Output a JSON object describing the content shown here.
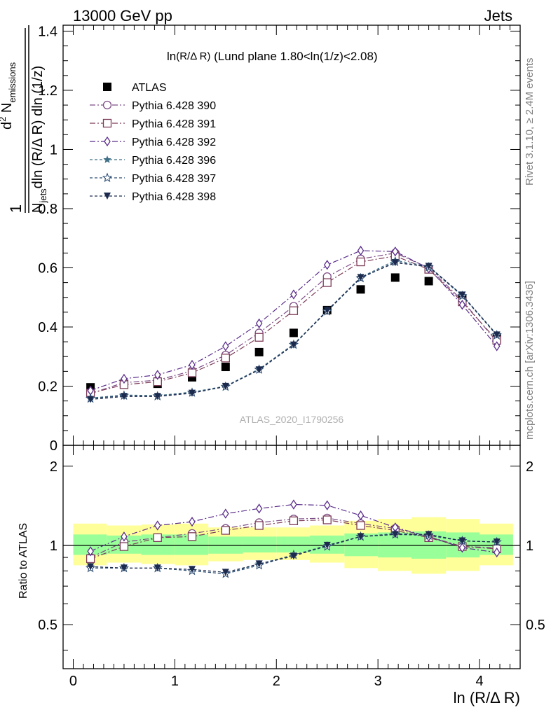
{
  "header": {
    "left": "13000 GeV pp",
    "right": "Jets"
  },
  "side_labels": {
    "rivet": "Rivet 3.1.10, ≥ 2.4M events",
    "mcplots": "mcplots.cern.ch [arXiv:1306.3436]"
  },
  "watermark": "ATLAS_2020_I1790256",
  "colors": {
    "yellow_band": "#ffff99",
    "green_band": "#99ff99",
    "data": "#000000",
    "p390": "#7e4e86",
    "p391": "#7d3c58",
    "p392": "#5b2e8a",
    "p396": "#3f6f86",
    "p397": "#2e4e74",
    "p398": "#1c2a4e"
  },
  "chart_data": [
    {
      "type": "line",
      "panel": "main",
      "title": "ln(R/Δ R) (Lund plane 1.80<ln(1/z)<2.08)",
      "xlabel": "ln (R/Δ R)",
      "ylabel": "1/N_jets d²N_emissions / dln(R/Δ R) dln(1/z)",
      "xlim": [
        -0.1,
        4.4
      ],
      "ylim": [
        0,
        1.42
      ],
      "x_ticks": [
        "0",
        "1",
        "2",
        "3",
        "4"
      ],
      "y_ticks": [
        "0",
        "0.2",
        "0.4",
        "0.6",
        "0.8",
        "1",
        "1.2",
        "1.4"
      ],
      "legend_position": "top-left",
      "x": [
        0.17,
        0.5,
        0.83,
        1.17,
        1.5,
        1.83,
        2.17,
        2.5,
        2.83,
        3.17,
        3.5,
        3.83,
        4.17
      ],
      "series": [
        {
          "name": "ATLAS",
          "marker": "square",
          "values": [
            0.196,
            0.208,
            0.208,
            0.23,
            0.265,
            0.315,
            0.38,
            0.457,
            0.527,
            0.567,
            0.555,
            0.495,
            0.365
          ]
        },
        {
          "name": "Pythia 6.428 390",
          "marker": "circle",
          "values": [
            0.175,
            0.212,
            0.22,
            0.252,
            0.305,
            0.38,
            0.47,
            0.57,
            0.63,
            0.65,
            0.6,
            0.49,
            0.35
          ]
        },
        {
          "name": "Pythia 6.428 391",
          "marker": "open-square",
          "values": [
            0.176,
            0.205,
            0.215,
            0.245,
            0.295,
            0.365,
            0.455,
            0.55,
            0.62,
            0.64,
            0.595,
            0.485,
            0.355
          ]
        },
        {
          "name": "Pythia 6.428 392",
          "marker": "diamond",
          "values": [
            0.185,
            0.225,
            0.238,
            0.272,
            0.335,
            0.412,
            0.51,
            0.61,
            0.658,
            0.655,
            0.598,
            0.475,
            0.335
          ]
        },
        {
          "name": "Pythia 6.428 396",
          "marker": "star",
          "values": [
            0.16,
            0.17,
            0.168,
            0.18,
            0.2,
            0.258,
            0.342,
            0.455,
            0.568,
            0.625,
            0.605,
            0.507,
            0.375
          ]
        },
        {
          "name": "Pythia 6.428 397",
          "marker": "open-star",
          "values": [
            0.158,
            0.168,
            0.166,
            0.178,
            0.198,
            0.256,
            0.34,
            0.453,
            0.565,
            0.62,
            0.602,
            0.505,
            0.372
          ]
        },
        {
          "name": "Pythia 6.428 398",
          "marker": "down-triangle",
          "values": [
            0.155,
            0.165,
            0.165,
            0.176,
            0.199,
            0.255,
            0.339,
            0.456,
            0.567,
            0.617,
            0.605,
            0.508,
            0.373
          ]
        }
      ]
    },
    {
      "type": "line",
      "panel": "ratio",
      "xlabel": "ln (R/Δ R)",
      "ylabel": "Ratio to ATLAS",
      "xlim": [
        -0.1,
        4.4
      ],
      "ylim": [
        0.34,
        2.4
      ],
      "log_scale_y": true,
      "x_ticks": [
        "0",
        "1",
        "2",
        "3",
        "4"
      ],
      "y_ticks": [
        "0.5",
        "1",
        "2"
      ],
      "x": [
        0.17,
        0.5,
        0.83,
        1.17,
        1.5,
        1.83,
        2.17,
        2.5,
        2.83,
        3.17,
        3.5,
        3.83,
        4.17
      ],
      "band_edges": [
        0.0,
        0.33,
        0.67,
        1.0,
        1.33,
        1.67,
        2.0,
        2.33,
        2.67,
        3.0,
        3.33,
        3.67,
        4.0,
        4.33
      ],
      "band_yellow": {
        "lo": [
          0.84,
          0.86,
          0.85,
          0.84,
          0.87,
          0.88,
          0.88,
          0.86,
          0.82,
          0.8,
          0.78,
          0.8,
          0.84
        ],
        "hi": [
          1.21,
          1.19,
          1.2,
          1.21,
          1.17,
          1.17,
          1.17,
          1.19,
          1.24,
          1.26,
          1.28,
          1.26,
          1.21
        ]
      },
      "band_green": {
        "lo": [
          0.92,
          0.93,
          0.92,
          0.92,
          0.93,
          0.94,
          0.94,
          0.93,
          0.91,
          0.9,
          0.89,
          0.9,
          0.92
        ],
        "hi": [
          1.1,
          1.09,
          1.1,
          1.1,
          1.08,
          1.08,
          1.08,
          1.09,
          1.11,
          1.12,
          1.13,
          1.12,
          1.1
        ]
      },
      "series": [
        {
          "name": "Pythia 6.428 390",
          "marker": "circle",
          "values": [
            0.9,
            1.03,
            1.07,
            1.11,
            1.16,
            1.22,
            1.26,
            1.27,
            1.21,
            1.16,
            1.08,
            0.99,
            0.98
          ]
        },
        {
          "name": "Pythia 6.428 391",
          "marker": "open-square",
          "values": [
            0.89,
            0.99,
            1.07,
            1.08,
            1.14,
            1.19,
            1.24,
            1.25,
            1.19,
            1.14,
            1.07,
            0.99,
            0.97
          ]
        },
        {
          "name": "Pythia 6.428 392",
          "marker": "diamond",
          "values": [
            0.95,
            1.08,
            1.19,
            1.23,
            1.32,
            1.38,
            1.43,
            1.42,
            1.3,
            1.17,
            1.08,
            0.98,
            0.94
          ]
        },
        {
          "name": "Pythia 6.428 396",
          "marker": "star",
          "values": [
            0.83,
            0.82,
            0.82,
            0.8,
            0.78,
            0.85,
            0.92,
            1.0,
            1.08,
            1.11,
            1.1,
            1.04,
            1.03
          ]
        },
        {
          "name": "Pythia 6.428 397",
          "marker": "open-star",
          "values": [
            0.82,
            0.82,
            0.82,
            0.8,
            0.78,
            0.84,
            0.92,
            0.99,
            1.08,
            1.1,
            1.09,
            1.04,
            1.03
          ]
        },
        {
          "name": "Pythia 6.428 398",
          "marker": "down-triangle",
          "values": [
            0.83,
            0.82,
            0.82,
            0.81,
            0.79,
            0.85,
            0.91,
            1.0,
            1.08,
            1.1,
            1.1,
            1.04,
            1.03
          ]
        }
      ]
    }
  ]
}
